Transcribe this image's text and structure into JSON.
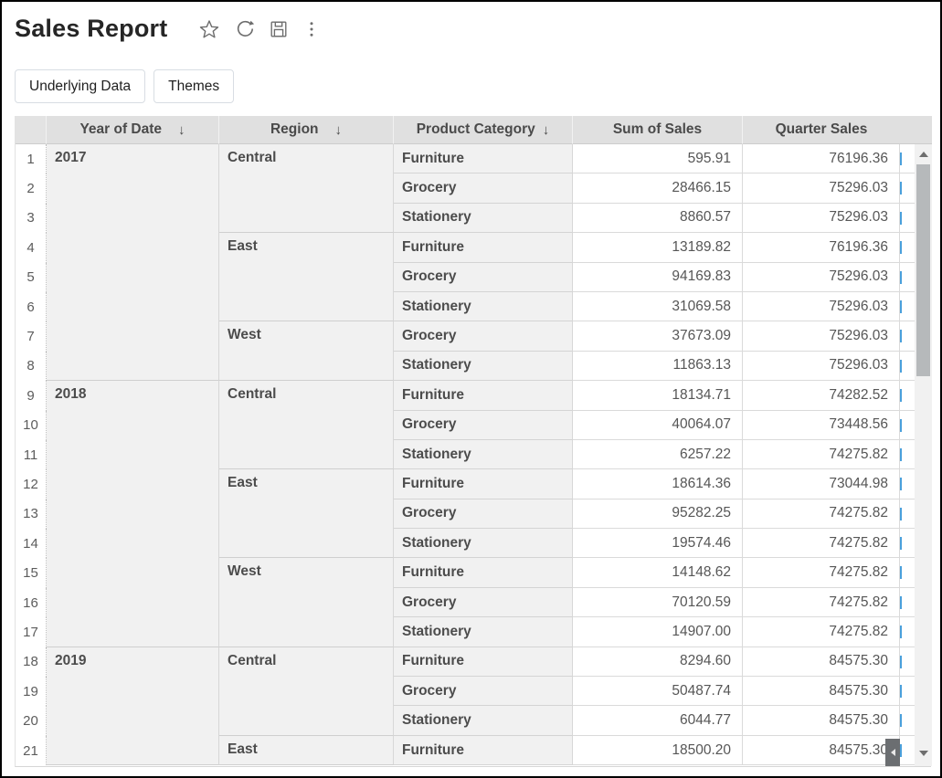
{
  "header": {
    "title": "Sales Report",
    "actions": [
      {
        "label": "Favorite",
        "icon": "star-icon"
      },
      {
        "label": "Refresh",
        "icon": "refresh-icon"
      },
      {
        "label": "Save",
        "icon": "save-icon"
      },
      {
        "label": "More options",
        "icon": "kebab-menu-icon"
      }
    ]
  },
  "toolbar": {
    "buttons": [
      {
        "label": "Underlying Data"
      },
      {
        "label": "Themes"
      }
    ]
  },
  "grid": {
    "sort_indicator": "↓",
    "columns": [
      {
        "label": "Year of Date",
        "sorted": "desc"
      },
      {
        "label": "Region",
        "sorted": "desc"
      },
      {
        "label": "Product Category",
        "sorted": "desc"
      },
      {
        "label": "Sum of Sales",
        "sorted": ""
      },
      {
        "label": "Quarter Sales",
        "sorted": ""
      }
    ],
    "rows": [
      {
        "num": "1",
        "year": "2017",
        "year_span": 8,
        "region": "Central",
        "region_span": 3,
        "category": "Furniture",
        "sum_of_sales": "595.91",
        "quarter_sales": "76196.36"
      },
      {
        "num": "2",
        "category": "Grocery",
        "sum_of_sales": "28466.15",
        "quarter_sales": "75296.03"
      },
      {
        "num": "3",
        "category": "Stationery",
        "sum_of_sales": "8860.57",
        "quarter_sales": "75296.03"
      },
      {
        "num": "4",
        "region": "East",
        "region_span": 3,
        "category": "Furniture",
        "sum_of_sales": "13189.82",
        "quarter_sales": "76196.36"
      },
      {
        "num": "5",
        "category": "Grocery",
        "sum_of_sales": "94169.83",
        "quarter_sales": "75296.03"
      },
      {
        "num": "6",
        "category": "Stationery",
        "sum_of_sales": "31069.58",
        "quarter_sales": "75296.03"
      },
      {
        "num": "7",
        "region": "West",
        "region_span": 2,
        "category": "Grocery",
        "sum_of_sales": "37673.09",
        "quarter_sales": "75296.03"
      },
      {
        "num": "8",
        "category": "Stationery",
        "sum_of_sales": "11863.13",
        "quarter_sales": "75296.03"
      },
      {
        "num": "9",
        "year": "2018",
        "year_span": 9,
        "region": "Central",
        "region_span": 3,
        "category": "Furniture",
        "sum_of_sales": "18134.71",
        "quarter_sales": "74282.52"
      },
      {
        "num": "10",
        "category": "Grocery",
        "sum_of_sales": "40064.07",
        "quarter_sales": "73448.56"
      },
      {
        "num": "11",
        "category": "Stationery",
        "sum_of_sales": "6257.22",
        "quarter_sales": "74275.82"
      },
      {
        "num": "12",
        "region": "East",
        "region_span": 3,
        "category": "Furniture",
        "sum_of_sales": "18614.36",
        "quarter_sales": "73044.98"
      },
      {
        "num": "13",
        "category": "Grocery",
        "sum_of_sales": "95282.25",
        "quarter_sales": "74275.82"
      },
      {
        "num": "14",
        "category": "Stationery",
        "sum_of_sales": "19574.46",
        "quarter_sales": "74275.82"
      },
      {
        "num": "15",
        "region": "West",
        "region_span": 3,
        "category": "Furniture",
        "sum_of_sales": "14148.62",
        "quarter_sales": "74275.82"
      },
      {
        "num": "16",
        "category": "Grocery",
        "sum_of_sales": "70120.59",
        "quarter_sales": "74275.82"
      },
      {
        "num": "17",
        "category": "Stationery",
        "sum_of_sales": "14907.00",
        "quarter_sales": "74275.82"
      },
      {
        "num": "18",
        "year": "2019",
        "year_span": 4,
        "region": "Central",
        "region_span": 3,
        "category": "Furniture",
        "sum_of_sales": "8294.60",
        "quarter_sales": "84575.30"
      },
      {
        "num": "19",
        "category": "Grocery",
        "sum_of_sales": "50487.74",
        "quarter_sales": "84575.30"
      },
      {
        "num": "20",
        "category": "Stationery",
        "sum_of_sales": "6044.77",
        "quarter_sales": "84575.30"
      },
      {
        "num": "21",
        "region": "East",
        "region_span": 1,
        "category": "Furniture",
        "sum_of_sales": "18500.20",
        "quarter_sales": "84575.30"
      }
    ]
  },
  "colors": {
    "header_bg": "#e0e0e0",
    "group_cell_bg": "#f1f1f1",
    "scrollbar_thumb": "#b6b9bb",
    "clipped_text_accent": "#4aa0dc"
  }
}
